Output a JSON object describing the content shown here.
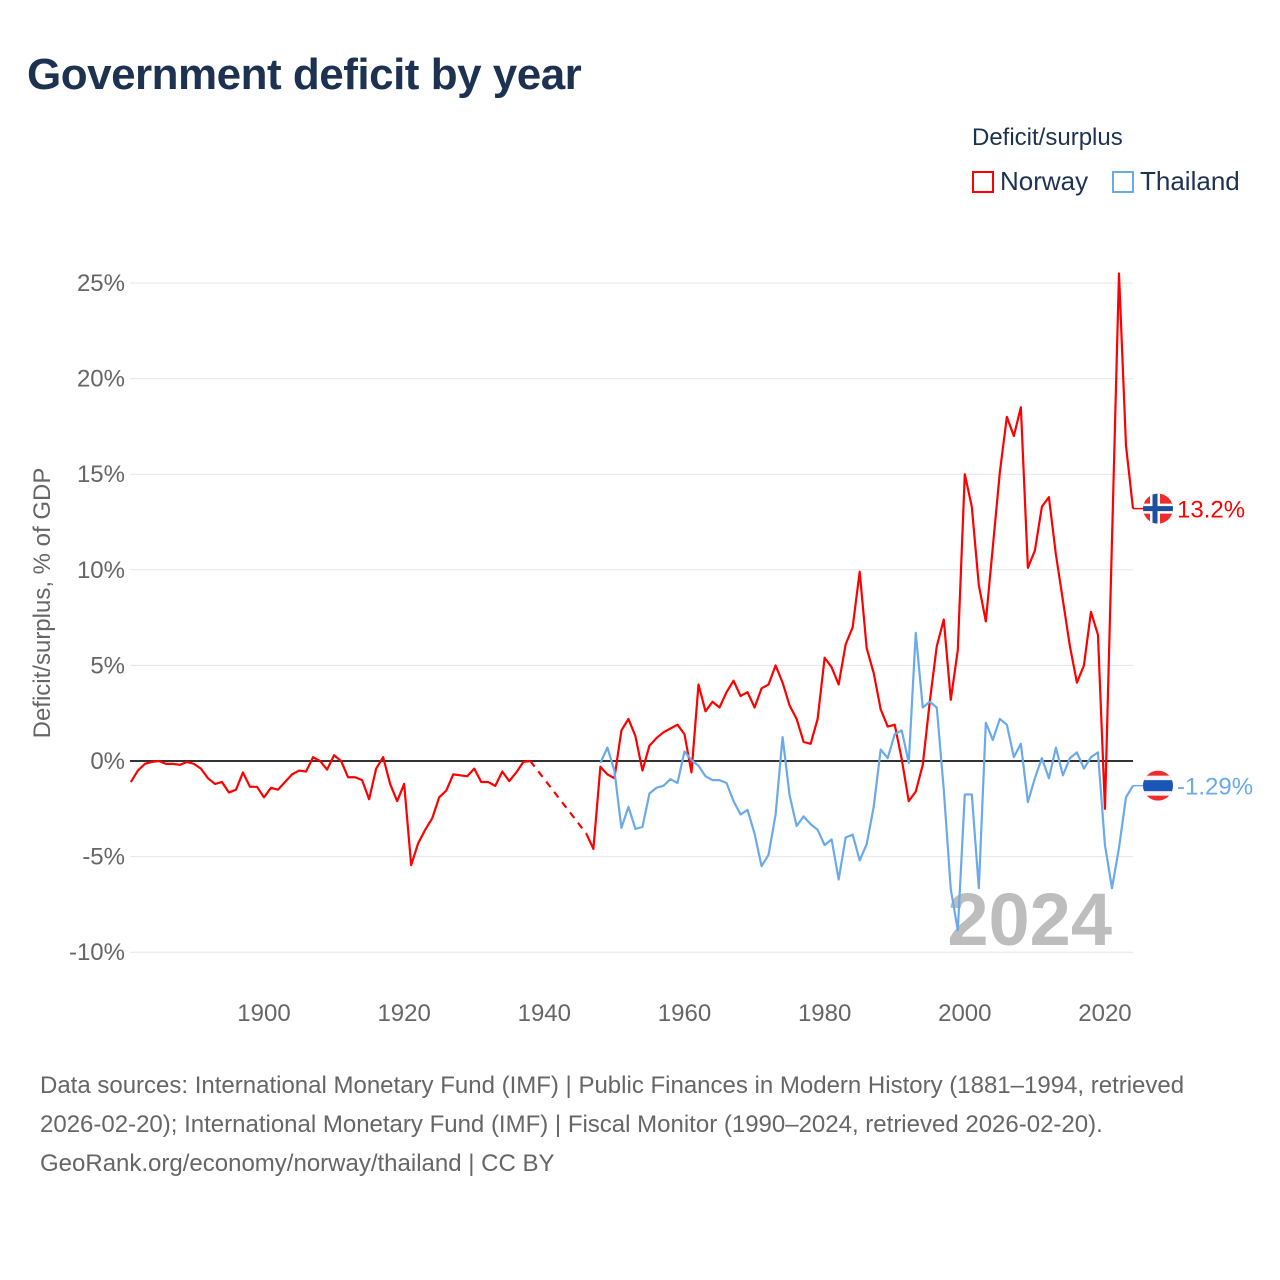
{
  "title": "Government deficit by year",
  "legend": {
    "title": "Deficit/surplus",
    "items": [
      {
        "name": "Norway",
        "color": "#ff0000"
      },
      {
        "name": "Thailand",
        "color": "#6aaaea"
      }
    ]
  },
  "chart_data": {
    "type": "line",
    "ylabel": "Deficit/surplus, % of GDP",
    "xlabel": "",
    "ylim": [
      -10,
      25
    ],
    "xlim": [
      1881,
      2024
    ],
    "yticks": [
      -10,
      -5,
      0,
      5,
      10,
      15,
      20,
      25
    ],
    "ytick_labels": [
      "-10%",
      "-5%",
      "0%",
      "5%",
      "10%",
      "15%",
      "20%",
      "25%"
    ],
    "xticks": [
      1900,
      1920,
      1940,
      1960,
      1980,
      2000,
      2020
    ],
    "xtick_labels": [
      "1900",
      "1920",
      "1940",
      "1960",
      "1980",
      "2000",
      "2020"
    ],
    "grid": true,
    "year_watermark": "2024",
    "series": [
      {
        "name": "Norway",
        "color": "#ff0000",
        "start_year": 1881,
        "end_label": "13.2%",
        "values": [
          -1.1,
          -0.5,
          -0.15,
          -0.05,
          0.0,
          -0.15,
          -0.15,
          -0.2,
          -0.05,
          -0.15,
          -0.4,
          -0.9,
          -1.2,
          -1.1,
          -1.65,
          -1.5,
          -0.6,
          -1.35,
          -1.35,
          -1.9,
          -1.4,
          -1.5,
          -1.1,
          -0.7,
          -0.5,
          -0.55,
          0.2,
          0.0,
          -0.45,
          0.3,
          0.0,
          -0.85,
          -0.85,
          -1.0,
          -2.0,
          -0.4,
          0.2,
          -1.2,
          -2.1,
          -1.2,
          -5.45,
          -4.3,
          -3.6,
          -3.0,
          -1.9,
          -1.55,
          -0.7,
          -0.75,
          -0.8,
          -0.4,
          -1.1,
          -1.1,
          -1.3,
          -0.55,
          -1.05,
          -0.6,
          -0.05,
          0.0,
          null,
          null,
          null,
          null,
          null,
          null,
          null,
          -3.8,
          -4.6,
          -0.3,
          -0.7,
          -0.9,
          1.6,
          2.2,
          1.3,
          -0.5,
          0.8,
          1.2,
          1.5,
          1.7,
          1.9,
          1.4,
          -0.6,
          4.0,
          2.6,
          3.1,
          2.8,
          3.6,
          4.2,
          3.4,
          3.6,
          2.8,
          3.8,
          4.0,
          5.0,
          4.1,
          2.9,
          2.2,
          1.0,
          0.9,
          2.2,
          5.4,
          4.9,
          4.0,
          6.1,
          7.0,
          9.9,
          5.9,
          4.6,
          2.7,
          1.8,
          1.9,
          0.1,
          -2.1,
          -1.6,
          -0.2,
          3.1,
          6.0,
          7.4,
          3.2,
          5.8,
          15.0,
          13.3,
          9.2,
          7.3,
          11.2,
          15.1,
          18.0,
          17.0,
          18.5,
          10.1,
          11.0,
          13.3,
          13.8,
          10.8,
          8.4,
          6.0,
          4.1,
          5.0,
          7.8,
          6.6,
          -2.5,
          11.5,
          25.5,
          16.5,
          13.2
        ]
      },
      {
        "name": "Thailand",
        "color": "#6aaaea",
        "start_year": 1948,
        "end_label": "-1.29%",
        "values": [
          -0.1,
          0.7,
          -0.5,
          -3.5,
          -2.4,
          -3.55,
          -3.45,
          -1.7,
          -1.4,
          -1.3,
          -0.95,
          -1.15,
          0.5,
          0.05,
          -0.25,
          -0.8,
          -1.0,
          -1.0,
          -1.15,
          -2.1,
          -2.8,
          -2.55,
          -3.8,
          -5.5,
          -4.9,
          -2.8,
          1.25,
          -1.8,
          -3.4,
          -2.9,
          -3.3,
          -3.6,
          -4.4,
          -4.1,
          -6.2,
          -4.0,
          -3.85,
          -5.2,
          -4.35,
          -2.4,
          0.6,
          0.15,
          1.4,
          1.6,
          -0.1,
          6.7,
          2.8,
          3.1,
          2.8,
          -1.5,
          -6.7,
          -8.85,
          -1.75,
          -1.75,
          -6.65,
          2.0,
          1.1,
          2.2,
          1.9,
          0.2,
          0.9,
          -2.15,
          -0.9,
          0.15,
          -0.9,
          0.7,
          -0.75,
          0.15,
          0.45,
          -0.4,
          0.2,
          0.45,
          -4.4,
          -6.65,
          -4.55,
          -1.9,
          -1.29
        ]
      }
    ]
  },
  "footer": {
    "sources": "Data sources: International Monetary Fund (IMF) | Public Finances in Modern History (1881–1994, retrieved 2026-02-20); International Monetary Fund (IMF) | Fiscal Monitor (1990–2024, retrieved 2026-02-20).",
    "credit": "GeoRank.org/economy/norway/thailand | CC BY"
  }
}
